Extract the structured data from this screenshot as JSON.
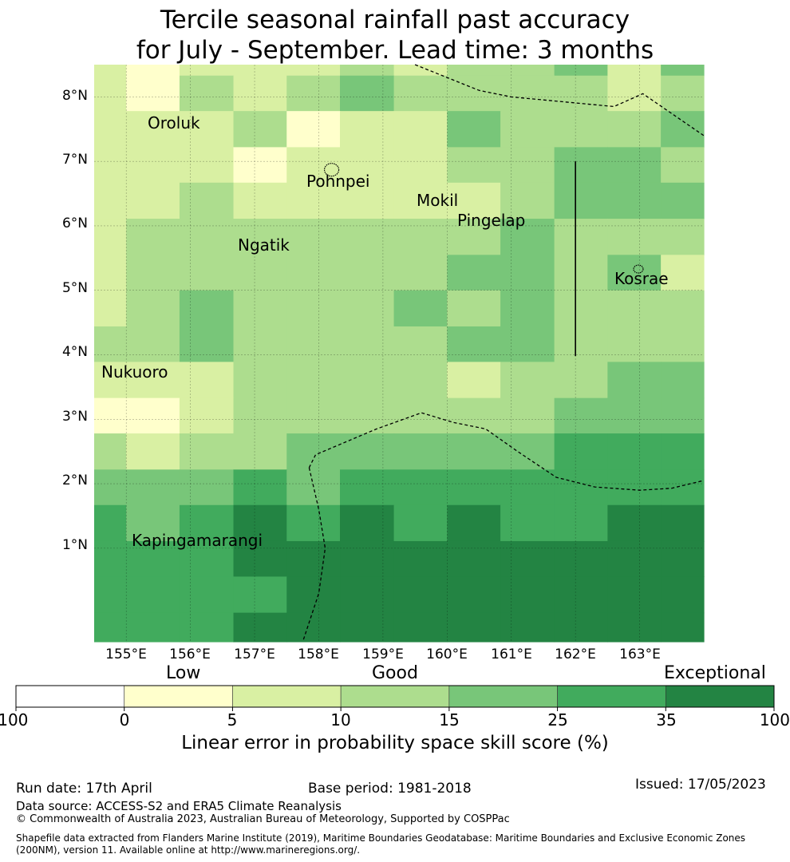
{
  "title": {
    "line1": "Tercile seasonal rainfall past accuracy",
    "line2": "for July - September. Lead time: 3 months"
  },
  "map": {
    "lat_labels": [
      "8°N",
      "7°N",
      "6°N",
      "5°N",
      "4°N",
      "3°N",
      "2°N",
      "1°N"
    ],
    "lon_labels": [
      "155°E",
      "156°E",
      "157°E",
      "158°E",
      "159°E",
      "160°E",
      "161°E",
      "162°E",
      "163°E"
    ],
    "places": [
      {
        "name": "Oroluk",
        "lon": 155.77,
        "lat": 7.6
      },
      {
        "name": "Pohnpei",
        "lon": 158.2,
        "lat": 6.85
      },
      {
        "name": "Mokil",
        "lon": 159.77,
        "lat": 6.68
      },
      {
        "name": "Pingelap",
        "lon": 160.7,
        "lat": 6.22
      },
      {
        "name": "Ngatik",
        "lon": 157.15,
        "lat": 5.78
      },
      {
        "name": "Kosrae",
        "lon": 162.98,
        "lat": 5.32
      },
      {
        "name": "Nukuoro",
        "lon": 154.78,
        "lat": 3.85
      },
      {
        "name": "Kapingamarangi",
        "lon": 154.78,
        "lat": 1.08
      }
    ],
    "grid_cells": {
      "lon_edges": [
        154.5,
        155.0,
        155.83,
        156.67,
        157.5,
        158.33,
        159.17,
        160.0,
        160.83,
        161.67,
        162.5,
        163.33,
        164.0
      ],
      "lat_edges": [
        8.5,
        8.33,
        7.78,
        7.22,
        6.67,
        6.11,
        5.55,
        5.0,
        4.44,
        3.89,
        3.33,
        2.78,
        2.22,
        1.67,
        1.11,
        0.56,
        0.0,
        -0.45
      ],
      "classes": [
        [
          2,
          1,
          2,
          2,
          2,
          3,
          2,
          3,
          3,
          4,
          2,
          4
        ],
        [
          2,
          1,
          3,
          2,
          3,
          4,
          3,
          3,
          3,
          3,
          2,
          3
        ],
        [
          2,
          2,
          2,
          3,
          1,
          2,
          2,
          4,
          3,
          3,
          3,
          4
        ],
        [
          2,
          2,
          2,
          1,
          2,
          2,
          2,
          3,
          3,
          4,
          4,
          3
        ],
        [
          2,
          2,
          3,
          2,
          2,
          2,
          2,
          2,
          3,
          4,
          4,
          4
        ],
        [
          2,
          3,
          3,
          3,
          3,
          3,
          3,
          3,
          4,
          3,
          3,
          3
        ],
        [
          2,
          3,
          3,
          3,
          3,
          3,
          3,
          4,
          4,
          3,
          4,
          2
        ],
        [
          2,
          3,
          4,
          3,
          3,
          3,
          4,
          3,
          4,
          3,
          3,
          3
        ],
        [
          3,
          3,
          4,
          3,
          3,
          3,
          3,
          4,
          4,
          3,
          3,
          3
        ],
        [
          2,
          2,
          2,
          3,
          3,
          3,
          3,
          2,
          3,
          3,
          4,
          4
        ],
        [
          1,
          1,
          2,
          3,
          3,
          3,
          3,
          3,
          3,
          4,
          4,
          4
        ],
        [
          3,
          2,
          3,
          3,
          4,
          4,
          4,
          4,
          4,
          5,
          5,
          5
        ],
        [
          4,
          4,
          4,
          5,
          4,
          5,
          5,
          5,
          5,
          5,
          5,
          5
        ],
        [
          5,
          4,
          5,
          6,
          5,
          6,
          5,
          6,
          5,
          5,
          6,
          6
        ],
        [
          5,
          5,
          5,
          6,
          6,
          6,
          6,
          6,
          6,
          6,
          6,
          6
        ],
        [
          5,
          5,
          5,
          5,
          6,
          6,
          6,
          6,
          6,
          6,
          6,
          6
        ],
        [
          5,
          5,
          5,
          6,
          6,
          6,
          6,
          6,
          6,
          6,
          6,
          6
        ]
      ]
    },
    "boundaries": [
      [
        [
          159.5,
          8.5
        ],
        [
          160.5,
          8.1
        ],
        [
          161.0,
          8.0
        ],
        [
          162.6,
          7.85
        ],
        [
          163.05,
          8.05
        ],
        [
          164.0,
          7.4
        ]
      ],
      [
        [
          157.85,
          2.25
        ],
        [
          158.0,
          1.6
        ],
        [
          158.1,
          1.0
        ],
        [
          158.0,
          0.3
        ],
        [
          157.75,
          -0.45
        ]
      ],
      [
        [
          157.85,
          2.25
        ],
        [
          157.95,
          2.45
        ],
        [
          158.9,
          2.85
        ],
        [
          159.6,
          3.1
        ],
        [
          160.1,
          2.95
        ],
        [
          160.6,
          2.85
        ],
        [
          161.1,
          2.5
        ],
        [
          161.7,
          2.1
        ],
        [
          162.3,
          1.95
        ],
        [
          163.0,
          1.9
        ],
        [
          163.5,
          1.93
        ],
        [
          164.0,
          2.05
        ]
      ]
    ],
    "divider": {
      "lon": 162.0,
      "lat_top": 7.0,
      "lat_bottom": 3.98
    },
    "islands": [
      {
        "name": "Pohnpei",
        "lon": 158.2,
        "lat": 6.87
      },
      {
        "name": "Kosrae",
        "lon": 162.98,
        "lat": 5.33
      }
    ],
    "colors": [
      "#ffffff",
      "#ffffcc",
      "#d9f0a3",
      "#addd8e",
      "#78c679",
      "#41ab5d",
      "#238443"
    ]
  },
  "colorbar": {
    "category_labels": [
      "Low",
      "Good",
      "Exceptional"
    ],
    "ticks": [
      "-100",
      "0",
      "5",
      "10",
      "15",
      "25",
      "35",
      "100"
    ],
    "label": "Linear error in probability space skill score (%)"
  },
  "footer": {
    "run_date": "Run date: 17th April",
    "base_period": "Base period: 1981-2018",
    "issued": "Issued: 17/05/2023",
    "data_source": "Data source: ACCESS-S2 and ERA5 Climate Reanalysis",
    "copyright": "© Commonwealth of Australia 2023, Australian Bureau of Meteorology, Supported by COSPPac",
    "shapefile_line1": "Shapefile data extracted from Flanders Marine Institute (2019), Maritime Boundaries Geodatabase: Maritime Boundaries and Exclusive Economic Zones",
    "shapefile_line2": "(200NM), version 11. Available online at http://www.marineregions.org/."
  }
}
